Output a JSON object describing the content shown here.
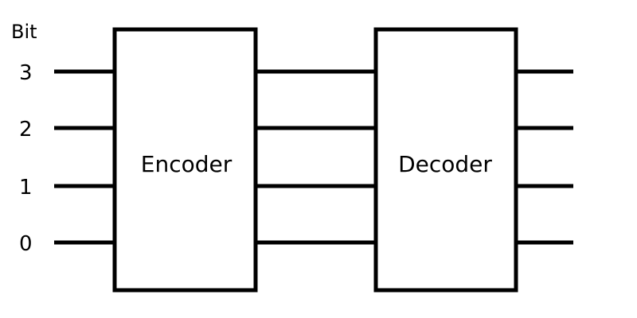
{
  "diagram": {
    "header_label": "Bit",
    "bits": [
      "3",
      "2",
      "1",
      "0"
    ],
    "blocks": {
      "encoder_label": "Encoder",
      "decoder_label": "Decoder"
    },
    "colors": {
      "stroke": "#000000",
      "background": "#ffffff"
    }
  }
}
